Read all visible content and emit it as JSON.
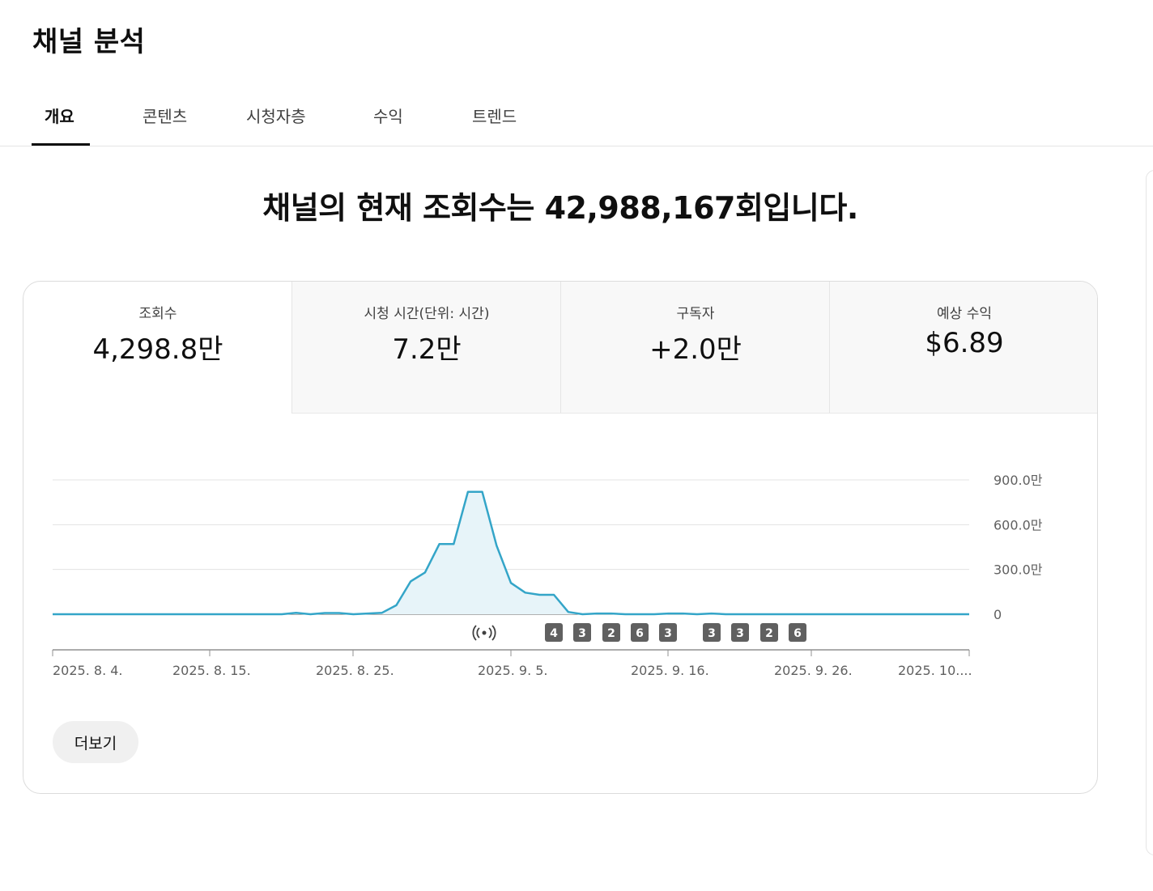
{
  "page_title": "채널 분석",
  "tabs": [
    "개요",
    "콘텐츠",
    "시청자층",
    "수익",
    "트렌드"
  ],
  "active_tab": "개요",
  "headline": "채널의 현재 조회수는 42,988,167회입니다.",
  "metrics": [
    {
      "label": "조회수",
      "value": "4,298.8만"
    },
    {
      "label": "시청 시간(단위: 시간)",
      "value": "7.2만"
    },
    {
      "label": "구독자",
      "value": "+2.0만"
    },
    {
      "label": "예상 수익",
      "value": "$6.89"
    }
  ],
  "more_button": "더보기",
  "colors": {
    "line": "#34a5c8",
    "fill": "#e7f4f9",
    "badge": "#606060"
  },
  "chart_data": {
    "type": "area",
    "series": [
      {
        "values": [
          0,
          0,
          0,
          0,
          0,
          0,
          0,
          0,
          0,
          0,
          0,
          0,
          0,
          0,
          0,
          0,
          0,
          0.1,
          0,
          0.08,
          0.08,
          0,
          0.05,
          0.1,
          0.6,
          2.2,
          2.8,
          4.7,
          4.7,
          8.2,
          8.2,
          4.6,
          2.1,
          1.45,
          1.3,
          1.3,
          0.15,
          0,
          0.05,
          0.05,
          0,
          0,
          0,
          0.05,
          0.05,
          0,
          0.05,
          0,
          0,
          0,
          0,
          0,
          0,
          0,
          0,
          0,
          0,
          0,
          0,
          0,
          0,
          0,
          0,
          0,
          0
        ]
      }
    ],
    "y_unit": "백만",
    "ylim": [
      0,
      9
    ],
    "yticks": [
      "0",
      "300.0만",
      "600.0만",
      "900.0만"
    ],
    "xticks": [
      "2025. 8. 4.",
      "2025. 8. 15.",
      "2025. 8. 25.",
      "2025. 9. 5.",
      "2025. 9. 16.",
      "2025. 9. 26.",
      "2025. 10...."
    ],
    "live_marker": "live-icon",
    "badges": [
      "4",
      "3",
      "2",
      "6",
      "3",
      "3",
      "3",
      "2",
      "6"
    ],
    "grid": true
  }
}
